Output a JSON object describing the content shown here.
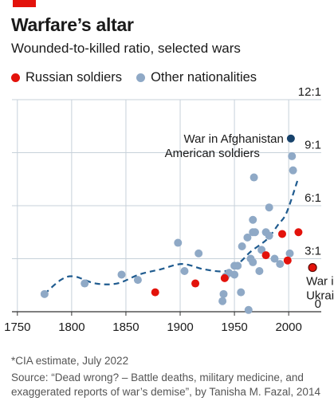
{
  "header": {
    "title": "Warfare’s altar",
    "subtitle": "Wounded-to-killed ratio, selected wars"
  },
  "legend": {
    "russian": "Russian soldiers",
    "other": "Other nationalities"
  },
  "colors": {
    "brand": "#e3120b",
    "russian": "#e3120b",
    "other": "#8fa9c6",
    "highlight": "#17426b",
    "trend": "#1f5b8f",
    "grid": "#c7d1da"
  },
  "annotations": {
    "afghanistan_line1": "War in Afghanistan",
    "afghanistan_line2": "American soldiers",
    "ukraine_line1": "War in",
    "ukraine_line2": "Ukraine*"
  },
  "footer": {
    "footnote": "*CIA estimate, July 2022",
    "source": "Source: “Dead wrong? – Battle deaths, military medicine, and exaggerated reports of war’s demise”, by Tanisha M. Fazal, 2014"
  },
  "chart_data": {
    "type": "scatter",
    "title": "Wounded-to-killed ratio, selected wars",
    "xlim": [
      1745,
      2030
    ],
    "ylim": [
      0,
      12
    ],
    "x_ticks": [
      1750,
      1800,
      1850,
      1900,
      1950,
      2000
    ],
    "y_ticks": [
      0,
      3,
      6,
      9,
      12
    ],
    "y_tick_labels": [
      "0",
      "3:1",
      "6:1",
      "9:1",
      "12:1"
    ],
    "grid": true,
    "legend_position": "top-left",
    "series": [
      {
        "name": "Russian soldiers",
        "points": [
          [
            1877,
            1.1
          ],
          [
            1914,
            1.6
          ],
          [
            1941,
            1.9
          ],
          [
            1979,
            3.2
          ],
          [
            1994,
            4.4
          ],
          [
            1999,
            2.9
          ],
          [
            2009,
            4.5
          ],
          [
            2022,
            2.5
          ]
        ]
      },
      {
        "name": "Other nationalities",
        "points": [
          [
            1775,
            1.0
          ],
          [
            1812,
            1.6
          ],
          [
            1846,
            2.1
          ],
          [
            1861,
            1.8
          ],
          [
            1898,
            3.9
          ],
          [
            1904,
            2.3
          ],
          [
            1917,
            3.3
          ],
          [
            1939,
            0.6
          ],
          [
            1940,
            1.0
          ],
          [
            1942,
            2.0
          ],
          [
            1945,
            2.2
          ],
          [
            1950,
            2.6
          ],
          [
            1950,
            2.1
          ],
          [
            1953,
            2.6
          ],
          [
            1956,
            1.1
          ],
          [
            1957,
            3.7
          ],
          [
            1962,
            4.2
          ],
          [
            1963,
            0.1
          ],
          [
            1965,
            3.0
          ],
          [
            1967,
            2.8
          ],
          [
            1967,
            4.5
          ],
          [
            1967,
            5.2
          ],
          [
            1968,
            7.6
          ],
          [
            1969,
            4.5
          ],
          [
            1973,
            2.3
          ],
          [
            1975,
            3.5
          ],
          [
            1979,
            4.5
          ],
          [
            1982,
            5.9
          ],
          [
            1982,
            4.3
          ],
          [
            1987,
            3.0
          ],
          [
            1992,
            2.7
          ],
          [
            2001,
            3.3
          ],
          [
            2003,
            8.8
          ],
          [
            2004,
            8.0
          ]
        ]
      }
    ],
    "highlight_point": {
      "label": "War in Afghanistan — American soldiers",
      "x": 2002,
      "y": 9.8
    },
    "trend_line": [
      [
        1775,
        1.0
      ],
      [
        1790,
        1.8
      ],
      [
        1802,
        2.0
      ],
      [
        1822,
        1.6
      ],
      [
        1842,
        1.6
      ],
      [
        1862,
        2.1
      ],
      [
        1882,
        2.4
      ],
      [
        1902,
        2.7
      ],
      [
        1922,
        2.4
      ],
      [
        1942,
        2.3
      ],
      [
        1955,
        2.8
      ],
      [
        1965,
        3.4
      ],
      [
        1980,
        4.1
      ],
      [
        1990,
        4.9
      ],
      [
        1998,
        5.6
      ],
      [
        2008,
        7.4
      ]
    ]
  }
}
